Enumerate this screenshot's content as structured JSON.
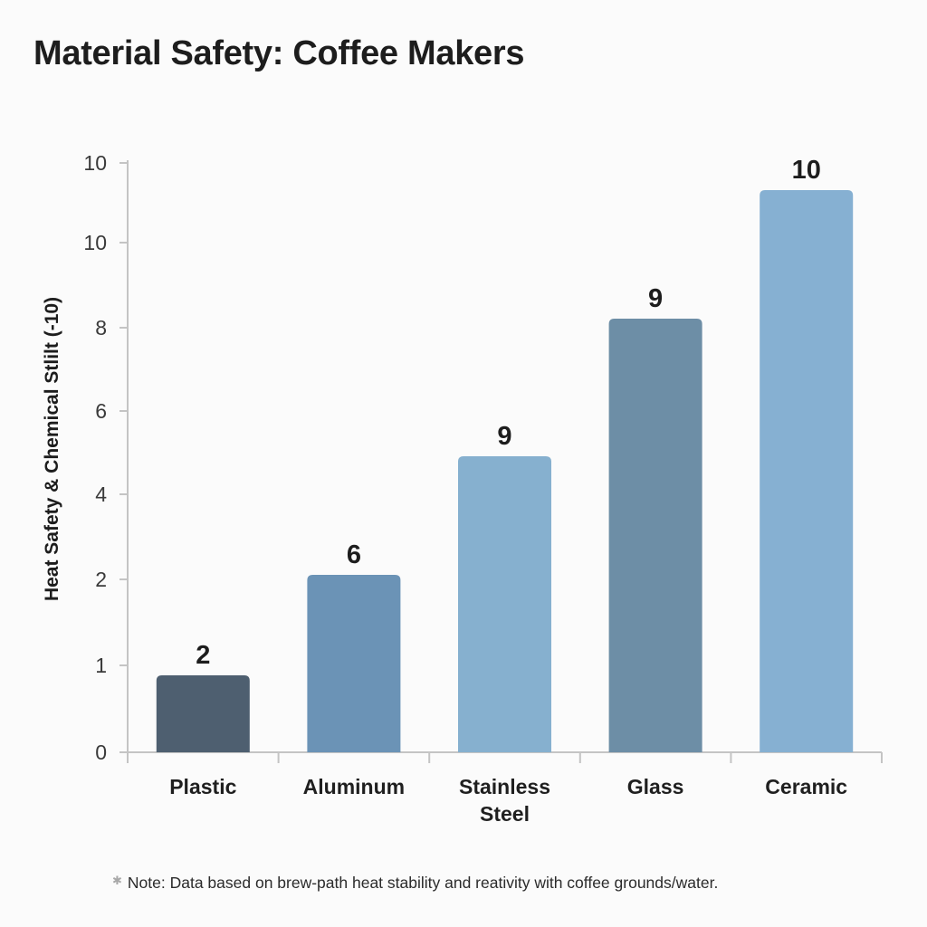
{
  "chart_data": {
    "type": "bar",
    "title": "Material Safety: Coffee Makers",
    "xlabel": "",
    "ylabel": "Heat Safety & Chemical Stlilt (-10)",
    "categories": [
      "Plastic",
      "Aluminum",
      "Stainless Steel",
      "Glass",
      "Ceramic"
    ],
    "category_lines": [
      [
        "Plastic"
      ],
      [
        "Aluminum"
      ],
      [
        "Stainless",
        "Steel"
      ],
      [
        "Glass"
      ],
      [
        "Ceramic"
      ]
    ],
    "values": [
      2,
      6,
      9,
      9,
      10
    ],
    "value_labels": [
      "2",
      "6",
      "9",
      "9",
      "10"
    ],
    "y_tick_labels": [
      "10",
      "10",
      "8",
      "6",
      "4",
      "2",
      "1",
      "0"
    ],
    "ylim": [
      0,
      10
    ],
    "grid": false,
    "legend": "none",
    "bar_colors": [
      "#4e5f70",
      "#6b93b6",
      "#86b0cf",
      "#6d8ea6",
      "#86b0d2"
    ],
    "note": "Note: Data based on brew-path heat stability and reativity with coffee grounds/water."
  }
}
